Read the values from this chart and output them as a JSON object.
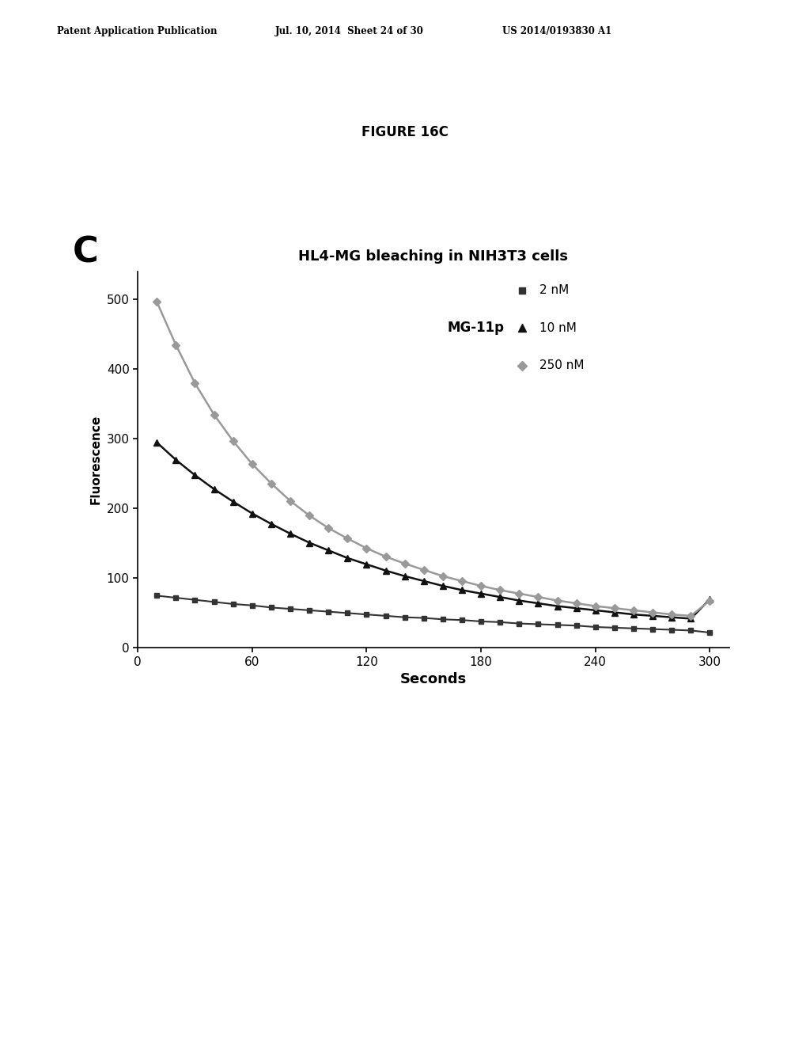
{
  "header_left": "Patent Application Publication",
  "header_mid": "Jul. 10, 2014  Sheet 24 of 30",
  "header_right": "US 2014/0193830 A1",
  "figure_label": "FIGURE 16C",
  "panel_label": "C",
  "chart_title": "HL4-MG bleaching in NIH3T3 cells",
  "xlabel": "Seconds",
  "ylabel": "Fluorescence",
  "xlim": [
    0,
    310
  ],
  "ylim": [
    0,
    540
  ],
  "xticks": [
    0,
    60,
    120,
    180,
    240,
    300
  ],
  "yticks": [
    0,
    100,
    200,
    300,
    400,
    500
  ],
  "legend_label": "MG-11p",
  "series": [
    {
      "label": "2 nM",
      "color": "#333333",
      "marker": "s",
      "markersize": 5,
      "linewidth": 1.5,
      "x": [
        10,
        20,
        30,
        40,
        50,
        60,
        70,
        80,
        90,
        100,
        110,
        120,
        130,
        140,
        150,
        160,
        170,
        180,
        190,
        200,
        210,
        220,
        230,
        240,
        250,
        260,
        270,
        280,
        290,
        300
      ],
      "y": [
        75,
        72,
        69,
        66,
        63,
        61,
        58,
        56,
        54,
        52,
        50,
        48,
        46,
        44,
        43,
        41,
        40,
        38,
        37,
        35,
        34,
        33,
        32,
        30,
        29,
        28,
        27,
        26,
        25,
        22
      ]
    },
    {
      "label": "10 nM",
      "color": "#111111",
      "marker": "^",
      "markersize": 6,
      "linewidth": 1.8,
      "x": [
        10,
        20,
        30,
        40,
        50,
        60,
        70,
        80,
        90,
        100,
        110,
        120,
        130,
        140,
        150,
        160,
        170,
        180,
        190,
        200,
        210,
        220,
        230,
        240,
        250,
        260,
        270,
        280,
        290,
        300
      ],
      "y": [
        295,
        270,
        248,
        228,
        210,
        193,
        178,
        164,
        151,
        140,
        129,
        120,
        111,
        103,
        96,
        89,
        83,
        78,
        73,
        68,
        64,
        60,
        57,
        54,
        51,
        48,
        46,
        44,
        42,
        70
      ]
    },
    {
      "label": "250 nM",
      "color": "#999999",
      "marker": "D",
      "markersize": 5,
      "linewidth": 1.8,
      "x": [
        10,
        20,
        30,
        40,
        50,
        60,
        70,
        80,
        90,
        100,
        110,
        120,
        130,
        140,
        150,
        160,
        170,
        180,
        190,
        200,
        210,
        220,
        230,
        240,
        250,
        260,
        270,
        280,
        290,
        300
      ],
      "y": [
        497,
        435,
        380,
        335,
        297,
        264,
        236,
        211,
        190,
        172,
        157,
        143,
        131,
        121,
        112,
        103,
        96,
        89,
        83,
        78,
        73,
        68,
        64,
        60,
        57,
        54,
        51,
        48,
        46,
        68
      ]
    }
  ],
  "background_color": "#ffffff",
  "fig_width": 10.24,
  "fig_height": 13.2
}
